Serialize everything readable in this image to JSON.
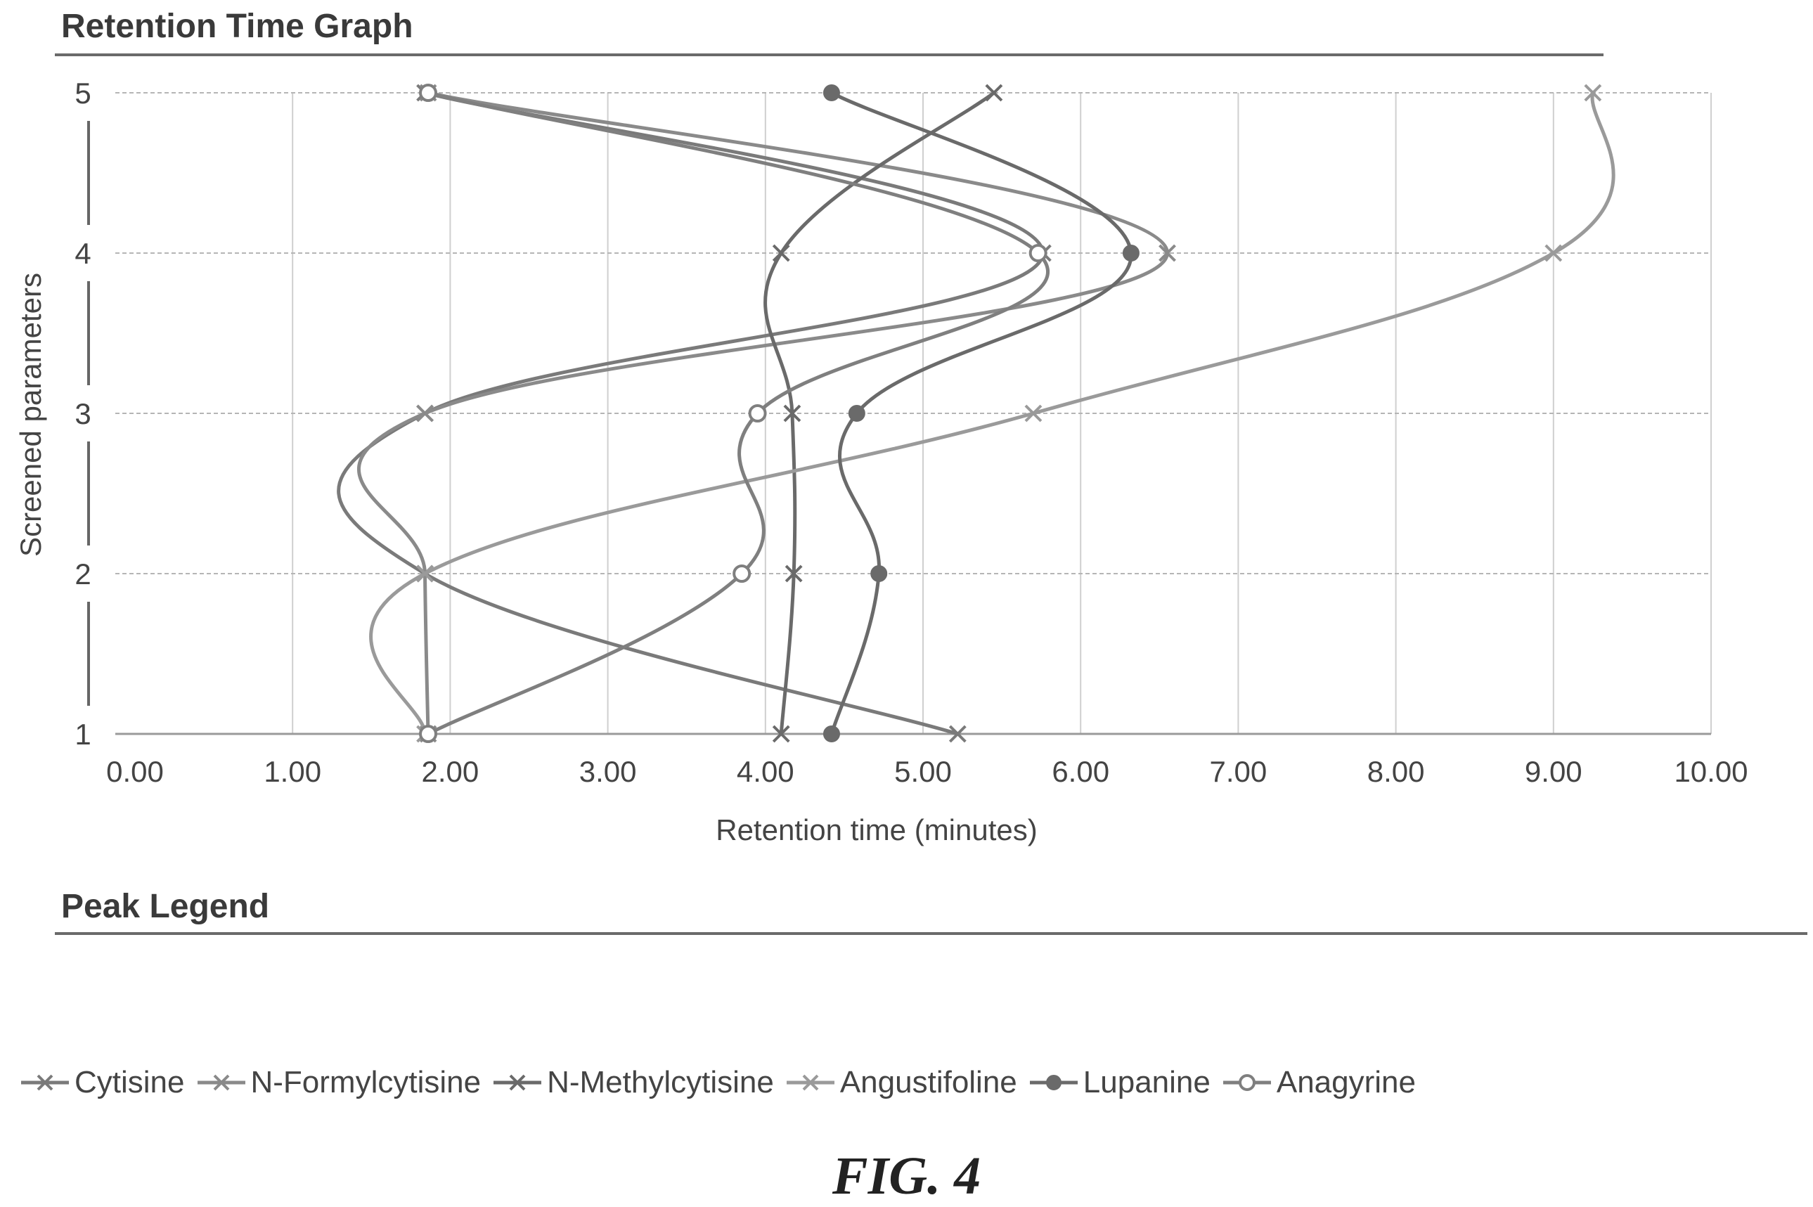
{
  "graph_heading": "Retention Time Graph",
  "legend_heading": "Peak Legend",
  "figure_caption": "FIG. 4",
  "chart_data": {
    "type": "line",
    "title": "Retention Time Graph",
    "xlabel": "Retention time (minutes)",
    "ylabel": "Screened parameters",
    "xlim": [
      0,
      10
    ],
    "ylim": [
      1,
      5
    ],
    "x_ticks": [
      "0.00",
      "1.00",
      "2.00",
      "3.00",
      "4.00",
      "5.00",
      "6.00",
      "7.00",
      "8.00",
      "9.00",
      "10.00"
    ],
    "y_ticks": [
      "1",
      "2",
      "3",
      "4",
      "5"
    ],
    "grid": true,
    "smoothed": true,
    "legend_placement": "bottom",
    "series": [
      {
        "name": "Cytisine",
        "marker": "x",
        "color": "#7a7a7a",
        "points": [
          {
            "x": 5.22,
            "y": 1
          },
          {
            "x": 1.84,
            "y": 2
          },
          {
            "x": 1.84,
            "y": 3
          },
          {
            "x": 5.76,
            "y": 4
          },
          {
            "x": 1.84,
            "y": 5
          }
        ]
      },
      {
        "name": "N-Formylcytisine",
        "marker": "x",
        "color": "#8a8a8a",
        "points": [
          {
            "x": 1.86,
            "y": 1
          },
          {
            "x": 1.84,
            "y": 2
          },
          {
            "x": 1.84,
            "y": 3
          },
          {
            "x": 6.55,
            "y": 4
          },
          {
            "x": 1.86,
            "y": 5
          }
        ]
      },
      {
        "name": "N-Methylcytisine",
        "marker": "x",
        "color": "#6a6a6a",
        "points": [
          {
            "x": 4.1,
            "y": 1
          },
          {
            "x": 4.18,
            "y": 2
          },
          {
            "x": 4.17,
            "y": 3
          },
          {
            "x": 4.1,
            "y": 4
          },
          {
            "x": 5.45,
            "y": 5
          }
        ]
      },
      {
        "name": "Angustifoline",
        "marker": "x",
        "color": "#9a9a9a",
        "points": [
          {
            "x": 1.84,
            "y": 1
          },
          {
            "x": 1.84,
            "y": 2
          },
          {
            "x": 5.7,
            "y": 3
          },
          {
            "x": 9.0,
            "y": 4
          },
          {
            "x": 9.25,
            "y": 5
          }
        ]
      },
      {
        "name": "Lupanine",
        "marker": "filled-circle",
        "color": "#6a6a6a",
        "points": [
          {
            "x": 4.42,
            "y": 1
          },
          {
            "x": 4.72,
            "y": 2
          },
          {
            "x": 4.58,
            "y": 3
          },
          {
            "x": 6.32,
            "y": 4
          },
          {
            "x": 4.42,
            "y": 5
          }
        ]
      },
      {
        "name": "Anagyrine",
        "marker": "open-circle",
        "color": "#7f7f7f",
        "points": [
          {
            "x": 1.86,
            "y": 1
          },
          {
            "x": 3.85,
            "y": 2
          },
          {
            "x": 3.95,
            "y": 3
          },
          {
            "x": 5.73,
            "y": 4
          },
          {
            "x": 1.86,
            "y": 5
          }
        ]
      }
    ]
  }
}
